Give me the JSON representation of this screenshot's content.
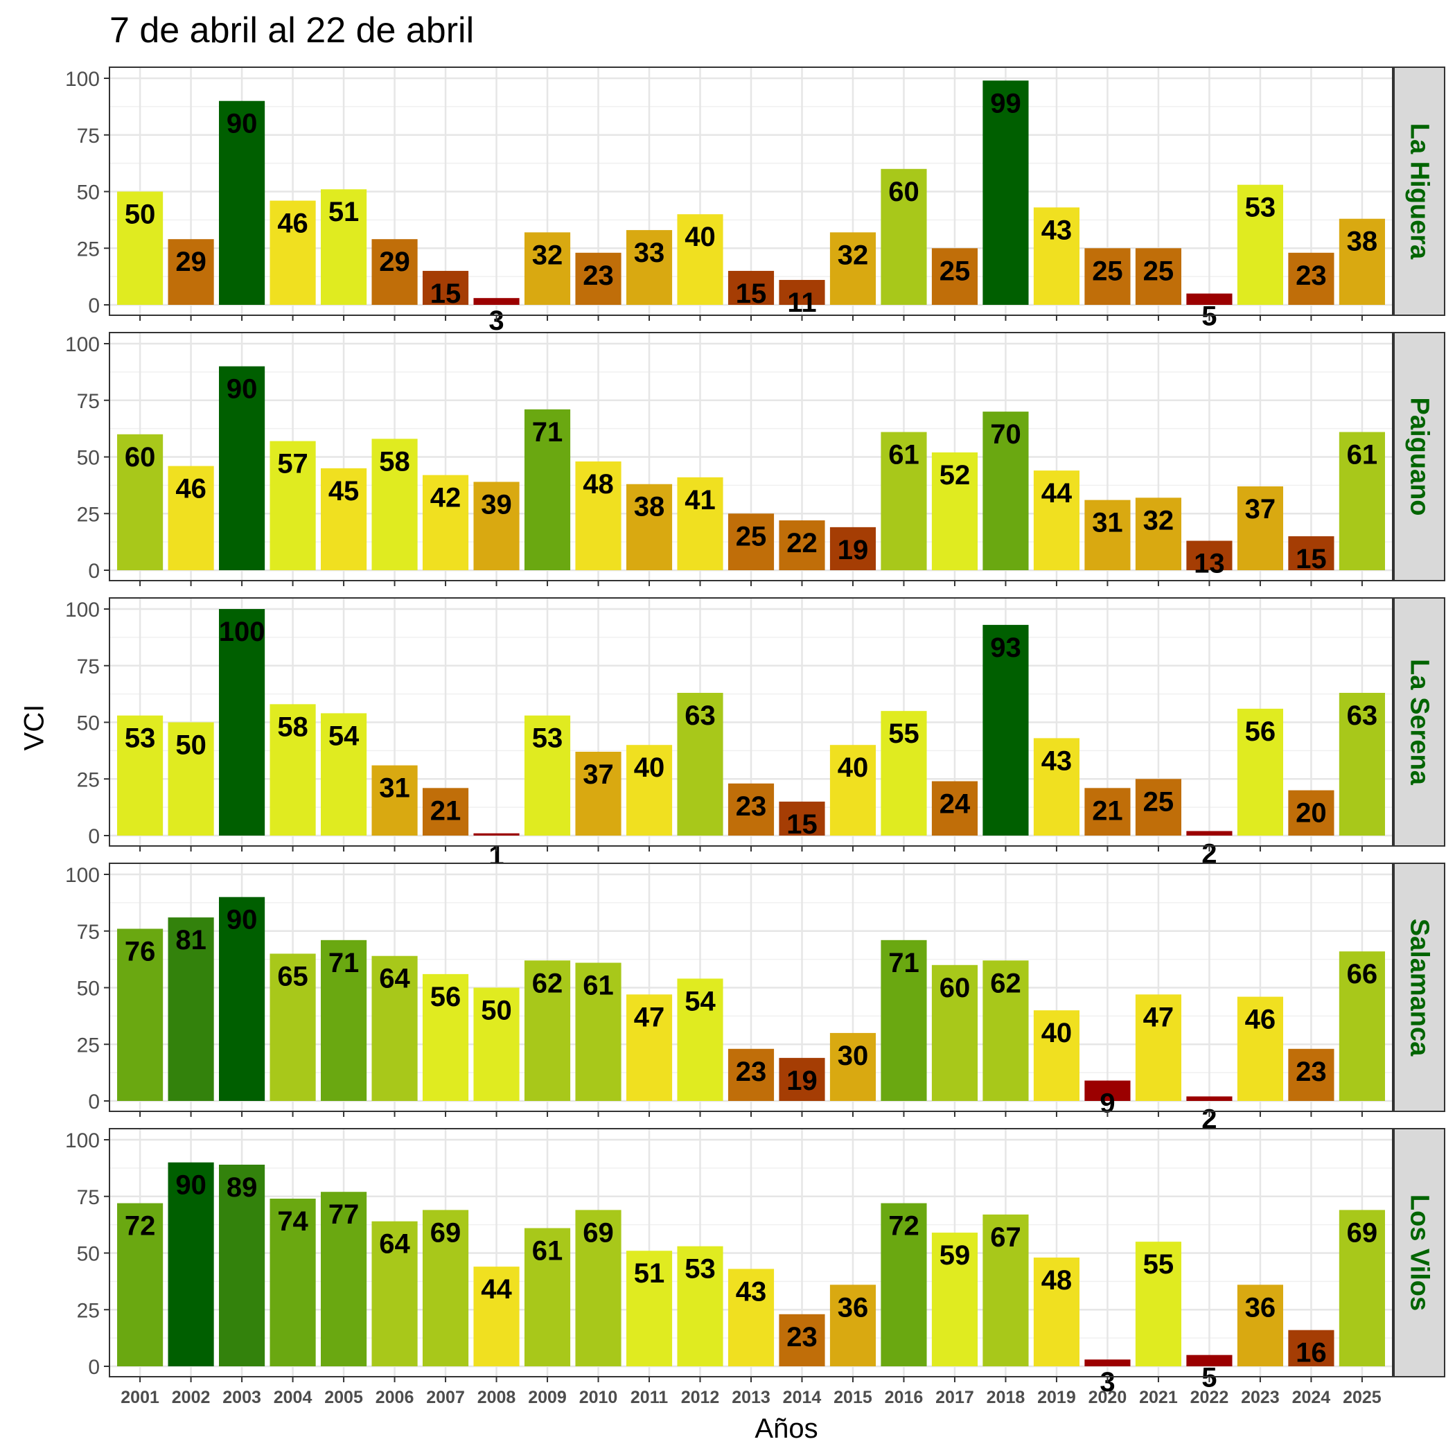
{
  "chart_data": {
    "type": "bar",
    "title": "7 de abril al 22 de abril",
    "xlabel": "Años",
    "ylabel": "VCI",
    "ylim": [
      0,
      100
    ],
    "yticks": [
      "0",
      "25",
      "50",
      "75",
      "100"
    ],
    "categories": [
      "2001",
      "2002",
      "2003",
      "2004",
      "2005",
      "2006",
      "2007",
      "2008",
      "2009",
      "2010",
      "2011",
      "2012",
      "2013",
      "2014",
      "2015",
      "2016",
      "2017",
      "2018",
      "2019",
      "2020",
      "2021",
      "2022",
      "2023",
      "2024",
      "2025"
    ],
    "grid": true,
    "facet_label_color": "#006400",
    "series": [
      {
        "name": "La Higuera",
        "values": [
          50,
          29,
          90,
          46,
          51,
          29,
          15,
          3,
          32,
          23,
          33,
          40,
          15,
          11,
          32,
          60,
          25,
          99,
          43,
          25,
          25,
          5,
          53,
          23,
          38
        ]
      },
      {
        "name": "Paiguano",
        "values": [
          60,
          46,
          90,
          57,
          45,
          58,
          42,
          39,
          71,
          48,
          38,
          41,
          25,
          22,
          19,
          61,
          52,
          70,
          44,
          31,
          32,
          13,
          37,
          15,
          61
        ]
      },
      {
        "name": "La Serena",
        "values": [
          53,
          50,
          100,
          58,
          54,
          31,
          21,
          1,
          53,
          37,
          40,
          63,
          23,
          15,
          40,
          55,
          24,
          93,
          43,
          21,
          25,
          2,
          56,
          20,
          63
        ]
      },
      {
        "name": "Salamanca",
        "values": [
          76,
          81,
          90,
          65,
          71,
          64,
          56,
          50,
          62,
          61,
          47,
          54,
          23,
          19,
          30,
          71,
          60,
          62,
          40,
          9,
          47,
          2,
          46,
          23,
          66
        ]
      },
      {
        "name": "Los Vilos",
        "values": [
          72,
          90,
          89,
          74,
          77,
          64,
          69,
          44,
          61,
          69,
          51,
          53,
          43,
          23,
          36,
          72,
          59,
          67,
          48,
          3,
          55,
          5,
          36,
          16,
          69
        ]
      }
    ],
    "color_scale": {
      "thresholds": [
        10,
        20,
        30,
        40,
        50,
        60,
        70,
        80,
        90
      ],
      "colors": [
        "#9b0000",
        "#a53d04",
        "#c06e09",
        "#d9a911",
        "#f0e020",
        "#e0eb20",
        "#a8c81a",
        "#6aa811",
        "#33820c",
        "#005f00"
      ]
    }
  }
}
